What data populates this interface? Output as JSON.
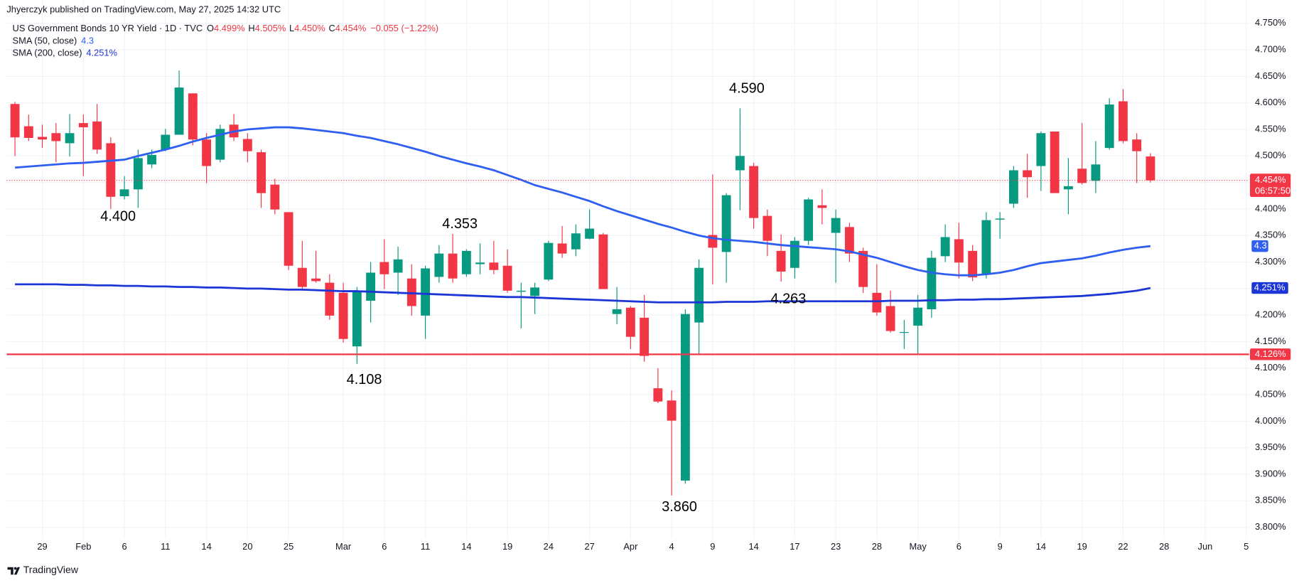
{
  "header": {
    "publisher": "Jhyerczyk published on TradingView.com, May 27, 2025 14:32 UTC",
    "symbol": "US Government Bonds 10 YR Yield · 1D · TVC",
    "ohlc": [
      {
        "key": "O",
        "value": "4.499%"
      },
      {
        "key": "H",
        "value": "4.505%"
      },
      {
        "key": "L",
        "value": "4.450%"
      },
      {
        "key": "C",
        "value": "4.454%"
      }
    ],
    "change": "−0.055 (−1.22%)"
  },
  "footer": {
    "brand": "TradingView"
  },
  "chart_data": {
    "type": "candlestick",
    "up_color": "#089981",
    "down_color": "#f23645",
    "grid": true,
    "categories": [
      null,
      null,
      "29",
      null,
      null,
      "Feb",
      null,
      null,
      "6",
      null,
      null,
      "11",
      null,
      null,
      "14",
      null,
      null,
      "20",
      null,
      null,
      "25",
      null,
      null,
      null,
      "Mar",
      null,
      null,
      "6",
      null,
      null,
      "11",
      null,
      null,
      "14",
      null,
      null,
      "19",
      null,
      null,
      "24",
      null,
      null,
      "27",
      null,
      null,
      "Apr",
      null,
      null,
      "4",
      null,
      null,
      "9",
      null,
      null,
      "14",
      null,
      null,
      "17",
      null,
      null,
      "23",
      null,
      null,
      "28",
      null,
      null,
      "May",
      null,
      null,
      "6",
      null,
      null,
      "9",
      null,
      null,
      "14",
      null,
      null,
      "19",
      null,
      null,
      "22",
      null,
      null,
      "28",
      null,
      null,
      "Jun",
      null,
      null,
      "5"
    ],
    "open": [
      4.598,
      4.556,
      4.536,
      4.543,
      4.524,
      4.562,
      4.565,
      4.524,
      4.424,
      4.437,
      4.484,
      4.512,
      4.54,
      4.618,
      4.531,
      4.493,
      4.559,
      4.532,
      4.507,
      4.446,
      4.394,
      4.289,
      4.269,
      4.261,
      4.242,
      4.141,
      4.227,
      4.3,
      4.28,
      4.269,
      4.199,
      4.272,
      4.316,
      4.277,
      4.296,
      4.299,
      4.293,
      4.244,
      4.236,
      4.267,
      4.335,
      4.324,
      4.344,
      4.352,
      4.202,
      4.214,
      4.195,
      4.062,
      4.039,
      3.888,
      4.186,
      4.351,
      4.319,
      4.473,
      4.481,
      4.387,
      4.321,
      4.289,
      4.34,
      4.407,
      4.355,
      4.366,
      4.321,
      4.242,
      4.217,
      4.167,
      4.18,
      4.211,
      4.311,
      4.343,
      4.321,
      4.277,
      4.38,
      4.41,
      4.473,
      4.481,
      4.546,
      4.437,
      4.476,
      4.453,
      4.515,
      4.603,
      4.531,
      4.499,
      null,
      null,
      null,
      null,
      null,
      null,
      null
    ],
    "high": [
      4.602,
      4.578,
      4.559,
      4.562,
      4.579,
      4.578,
      4.598,
      4.535,
      4.462,
      4.512,
      4.512,
      4.551,
      4.661,
      4.618,
      4.543,
      4.559,
      4.579,
      4.543,
      4.512,
      4.457,
      4.394,
      4.34,
      4.321,
      4.277,
      4.261,
      4.253,
      4.3,
      4.343,
      4.329,
      4.296,
      4.293,
      4.332,
      4.353,
      4.324,
      4.335,
      4.34,
      4.324,
      4.261,
      4.261,
      4.34,
      4.368,
      4.371,
      4.399,
      4.355,
      4.253,
      4.217,
      4.238,
      4.1,
      4.058,
      4.211,
      4.305,
      4.465,
      4.43,
      4.59,
      4.487,
      4.399,
      4.352,
      4.347,
      4.421,
      4.437,
      4.399,
      4.374,
      4.327,
      4.296,
      4.246,
      4.191,
      4.238,
      4.321,
      4.371,
      4.374,
      4.332,
      4.394,
      4.394,
      4.481,
      4.504,
      4.546,
      4.546,
      4.496,
      4.562,
      4.528,
      4.609,
      4.626,
      4.543,
      4.505,
      null,
      null,
      null,
      null,
      null,
      null,
      null
    ],
    "low": [
      4.5,
      4.528,
      4.515,
      4.488,
      4.499,
      4.462,
      4.504,
      4.4,
      4.418,
      4.402,
      4.477,
      4.509,
      4.54,
      4.52,
      4.449,
      4.488,
      4.528,
      4.488,
      4.402,
      4.39,
      4.285,
      4.246,
      4.261,
      4.191,
      4.148,
      4.108,
      4.186,
      4.249,
      4.238,
      4.199,
      4.155,
      4.261,
      4.261,
      4.272,
      4.277,
      4.277,
      4.242,
      4.175,
      4.202,
      4.264,
      4.308,
      4.311,
      4.343,
      4.249,
      4.183,
      4.136,
      4.112,
      4.034,
      3.86,
      3.882,
      4.126,
      4.258,
      4.261,
      4.398,
      4.363,
      4.311,
      4.263,
      4.269,
      4.332,
      4.371,
      4.261,
      4.3,
      4.242,
      4.199,
      4.167,
      4.136,
      4.126,
      4.195,
      4.3,
      4.269,
      4.264,
      4.269,
      4.344,
      4.402,
      4.421,
      4.434,
      4.43,
      4.39,
      4.446,
      4.43,
      4.512,
      4.524,
      4.449,
      4.45,
      null,
      null,
      null,
      null,
      null,
      null,
      null
    ],
    "close": [
      4.535,
      4.534,
      4.531,
      4.528,
      4.543,
      4.554,
      4.512,
      4.423,
      4.437,
      4.496,
      4.502,
      4.54,
      4.629,
      4.531,
      4.481,
      4.551,
      4.535,
      4.509,
      4.43,
      4.399,
      4.293,
      4.253,
      4.264,
      4.199,
      4.155,
      4.246,
      4.28,
      4.277,
      4.305,
      4.217,
      4.288,
      4.316,
      4.269,
      4.321,
      4.299,
      4.285,
      4.246,
      4.246,
      4.252,
      4.336,
      4.316,
      4.354,
      4.363,
      4.249,
      4.211,
      4.159,
      4.123,
      4.037,
      4.001,
      4.202,
      4.289,
      4.327,
      4.426,
      4.5,
      4.383,
      4.34,
      4.282,
      4.34,
      4.418,
      4.402,
      4.383,
      4.316,
      4.253,
      4.205,
      4.17,
      4.168,
      4.214,
      4.308,
      4.347,
      4.299,
      4.271,
      4.379,
      4.382,
      4.473,
      4.46,
      4.543,
      4.43,
      4.443,
      4.449,
      4.484,
      4.597,
      4.528,
      4.509,
      4.454,
      null,
      null,
      null,
      null,
      null,
      null,
      null
    ],
    "series": [
      {
        "name": "SMA (50, close)",
        "color": "#2f5ff0",
        "legend_value": "4.3",
        "values": [
          4.478,
          4.48,
          4.482,
          4.484,
          4.486,
          4.487,
          4.489,
          4.491,
          4.493,
          4.5,
          4.506,
          4.512,
          4.519,
          4.527,
          4.534,
          4.54,
          4.546,
          4.55,
          4.552,
          4.554,
          4.554,
          4.552,
          4.549,
          4.546,
          4.543,
          4.538,
          4.534,
          4.528,
          4.522,
          4.515,
          4.508,
          4.5,
          4.493,
          4.486,
          4.48,
          4.473,
          4.464,
          4.455,
          4.445,
          4.438,
          4.431,
          4.423,
          4.415,
          4.405,
          4.396,
          4.388,
          4.38,
          4.372,
          4.365,
          4.357,
          4.35,
          4.345,
          4.342,
          4.34,
          4.338,
          4.335,
          4.332,
          4.33,
          4.328,
          4.326,
          4.324,
          4.32,
          4.314,
          4.308,
          4.3,
          4.292,
          4.285,
          4.28,
          4.277,
          4.275,
          4.275,
          4.277,
          4.28,
          4.285,
          4.292,
          4.298,
          4.301,
          4.304,
          4.307,
          4.312,
          4.318,
          4.323,
          4.327,
          4.33,
          null,
          null,
          null,
          null,
          null,
          null,
          null
        ]
      },
      {
        "name": "SMA (200, close)",
        "color": "#1c35d6",
        "legend_value": "4.251%",
        "values": [
          4.258,
          4.258,
          4.258,
          4.258,
          4.257,
          4.257,
          4.256,
          4.256,
          4.255,
          4.255,
          4.254,
          4.254,
          4.253,
          4.253,
          4.252,
          4.252,
          4.251,
          4.25,
          4.25,
          4.249,
          4.248,
          4.248,
          4.247,
          4.246,
          4.245,
          4.245,
          4.244,
          4.243,
          4.242,
          4.241,
          4.24,
          4.239,
          4.238,
          4.237,
          4.236,
          4.235,
          4.234,
          4.234,
          4.233,
          4.232,
          4.231,
          4.23,
          4.229,
          4.228,
          4.227,
          4.226,
          4.225,
          4.224,
          4.224,
          4.224,
          4.224,
          4.224,
          4.225,
          4.225,
          4.225,
          4.226,
          4.226,
          4.226,
          4.226,
          4.226,
          4.226,
          4.226,
          4.226,
          4.226,
          4.227,
          4.227,
          4.227,
          4.228,
          4.228,
          4.229,
          4.229,
          4.23,
          4.23,
          4.231,
          4.232,
          4.233,
          4.234,
          4.235,
          4.236,
          4.238,
          4.24,
          4.243,
          4.246,
          4.251,
          null,
          null,
          null,
          null,
          null,
          null,
          null
        ]
      }
    ],
    "hline": {
      "value": 4.126,
      "label": "4.126%",
      "color": "#f23645"
    },
    "last_price": {
      "value": 4.454,
      "label": "4.454%",
      "countdown": "06:57:50"
    },
    "annotations": [
      "4.400",
      "4.353",
      "4.108",
      "3.860",
      "4.590",
      "4.263"
    ],
    "ylim": [
      3.778,
      4.794
    ],
    "yticks": [
      {
        "value": 3.8,
        "label": "3.800%"
      },
      {
        "value": 3.85,
        "label": "3.850%"
      },
      {
        "value": 3.9,
        "label": "3.900%"
      },
      {
        "value": 3.95,
        "label": "3.950%"
      },
      {
        "value": 4.0,
        "label": "4.000%"
      },
      {
        "value": 4.05,
        "label": "4.050%"
      },
      {
        "value": 4.1,
        "label": "4.100%"
      },
      {
        "value": 4.15,
        "label": "4.150%"
      },
      {
        "value": 4.2,
        "label": "4.200%"
      },
      {
        "value": 4.25,
        "label": "4.250%"
      },
      {
        "value": 4.3,
        "label": "4.300%"
      },
      {
        "value": 4.35,
        "label": "4.350%"
      },
      {
        "value": 4.4,
        "label": "4.400%"
      },
      {
        "value": 4.45,
        "label": "4.450%"
      },
      {
        "value": 4.5,
        "label": "4.500%"
      },
      {
        "value": 4.55,
        "label": "4.550%"
      },
      {
        "value": 4.6,
        "label": "4.600%"
      },
      {
        "value": 4.65,
        "label": "4.650%"
      },
      {
        "value": 4.7,
        "label": "4.700%"
      },
      {
        "value": 4.75,
        "label": "4.750%"
      }
    ]
  }
}
